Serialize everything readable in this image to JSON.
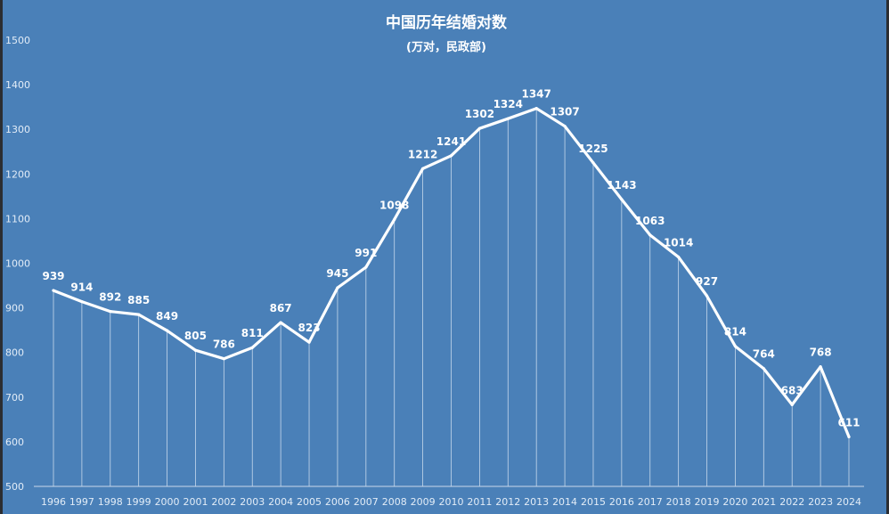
{
  "chart_data": {
    "type": "line",
    "title": "中国历年结婚对数",
    "subtitle": "(万对，民政部)",
    "xlabel": "",
    "ylabel": "",
    "ylim": [
      500,
      1500
    ],
    "yticks": [
      500,
      600,
      700,
      800,
      900,
      1000,
      1100,
      1200,
      1300,
      1400,
      1500
    ],
    "categories": [
      "1996",
      "1997",
      "1998",
      "1999",
      "2000",
      "2001",
      "2002",
      "2003",
      "2004",
      "2005",
      "2006",
      "2007",
      "2008",
      "2009",
      "2010",
      "2011",
      "2012",
      "2013",
      "2014",
      "2015",
      "2016",
      "2017",
      "2018",
      "2019",
      "2020",
      "2021",
      "2022",
      "2023",
      "2024"
    ],
    "values": [
      939,
      914,
      892,
      885,
      849,
      805,
      786,
      811,
      867,
      823,
      945,
      991,
      1098,
      1212,
      1241,
      1302,
      1324,
      1347,
      1307,
      1225,
      1143,
      1063,
      1014,
      927,
      814,
      764,
      683,
      768,
      611
    ],
    "data_labels": [
      "939",
      "914",
      "892",
      "885",
      "849",
      "805",
      "786",
      "811",
      "867",
      "823",
      "945",
      "991",
      "1098",
      "1212",
      "1241",
      "1302",
      "1324",
      "1347",
      "1307",
      "1225",
      "1143",
      "1063",
      "1014",
      "927",
      "814",
      "764",
      "683",
      "768",
      "611"
    ],
    "grid": false,
    "legend": "none",
    "colors": {
      "background": "#4a80b8",
      "line": "#ffffff",
      "drop_line": "#dce8f5",
      "text": "#ffffff",
      "axis_text": "#e2ecf7",
      "frame": "#2b2d31"
    }
  }
}
